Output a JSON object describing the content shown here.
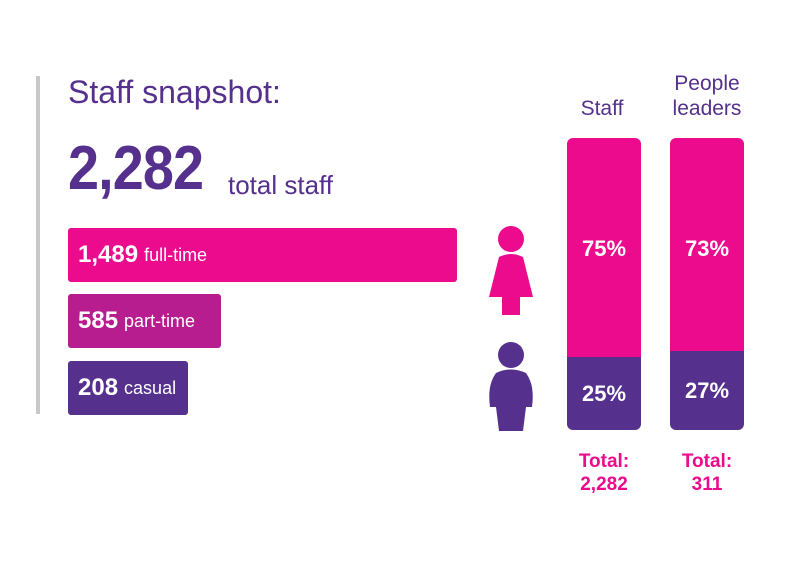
{
  "title": "Staff snapshot:",
  "total": {
    "value": "2,282",
    "label": "total staff"
  },
  "colors": {
    "pink": "#ec0b8d",
    "magenta": "#b81d8f",
    "purple": "#55308d",
    "rule": "#c8c8c8"
  },
  "icons": {
    "female": "female-person-icon",
    "male": "male-person-icon"
  },
  "chart_data": [
    {
      "type": "bar",
      "orientation": "horizontal",
      "title": "",
      "categories": [
        "full-time",
        "part-time",
        "casual"
      ],
      "values": [
        1489,
        585,
        208
      ],
      "value_labels": [
        "1,489",
        "585",
        "208"
      ],
      "colors": [
        "#ec0b8d",
        "#b81d8f",
        "#55308d"
      ],
      "xlim": [
        0,
        1489
      ]
    },
    {
      "type": "bar",
      "orientation": "vertical",
      "stacked": true,
      "percent": true,
      "categories": [
        "Staff",
        "People leaders"
      ],
      "category_lines": [
        [
          "Staff"
        ],
        [
          "People",
          "leaders"
        ]
      ],
      "series": [
        {
          "name": "female",
          "color": "#ec0b8d",
          "values": [
            75,
            73
          ],
          "labels": [
            "75%",
            "73%"
          ]
        },
        {
          "name": "male",
          "color": "#55308d",
          "values": [
            25,
            27
          ],
          "labels": [
            "25%",
            "27%"
          ]
        }
      ],
      "totals": [
        {
          "label": "Total:",
          "value": "2,282"
        },
        {
          "label": "Total:",
          "value": "311"
        }
      ],
      "ylim": [
        0,
        100
      ]
    }
  ]
}
